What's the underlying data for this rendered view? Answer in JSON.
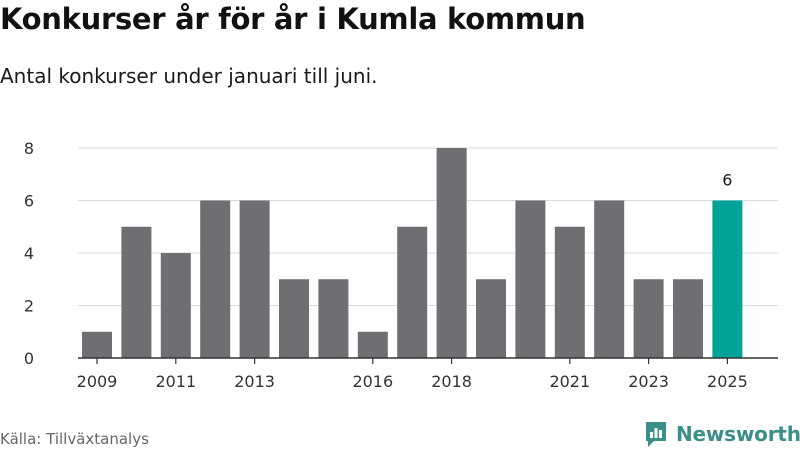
{
  "header": {
    "title": "Konkurser år för år i Kumla kommun",
    "subtitle": "Antal konkurser under januari till juni."
  },
  "footer": {
    "source": "Källa: Tillväxtanalys",
    "brand": "Newsworthy"
  },
  "colors": {
    "bar": "#6e6e73",
    "highlight": "#00a398",
    "grid": "#d9d9d9",
    "axis": "#333333",
    "brand": "#3a8f88"
  },
  "chart_data": {
    "type": "bar",
    "categories": [
      "2009",
      "2010",
      "2011",
      "2012",
      "2013",
      "2014",
      "2015",
      "2016",
      "2017",
      "2018",
      "2019",
      "2020",
      "2021",
      "2022",
      "2023",
      "2024",
      "2025"
    ],
    "values": [
      1,
      5,
      4,
      6,
      6,
      3,
      3,
      1,
      5,
      8,
      3,
      6,
      5,
      6,
      3,
      3,
      6
    ],
    "x_tick_labels": [
      "2009",
      "2011",
      "2013",
      "2016",
      "2018",
      "2021",
      "2023",
      "2025"
    ],
    "y_ticks": [
      "0",
      "2",
      "4",
      "6",
      "8"
    ],
    "ylim": [
      0,
      8
    ],
    "highlight_category": "2025",
    "data_labels": [
      {
        "category": "2025",
        "label": "6"
      }
    ],
    "title": "",
    "xlabel": "",
    "ylabel": "",
    "grid": true
  }
}
